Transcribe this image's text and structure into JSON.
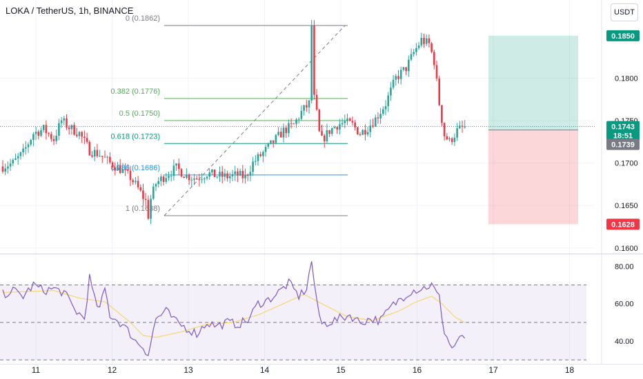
{
  "header": {
    "title": "LOKA / TetherUS, 1h, BINANCE",
    "currency_button": "USDT"
  },
  "colors": {
    "up": "#26a69a",
    "down": "#f23645",
    "rsi": "#7e57c2",
    "rsi_ma": "#f5d76e",
    "fib_green": "#4caf50",
    "fib_teal": "#089981",
    "fib_blue": "#2196f3",
    "target": "#089981",
    "stop": "#f23645",
    "current": "#089981"
  },
  "chart_data": [
    {
      "type": "candlestick",
      "name": "price",
      "x_ticks": [
        "11",
        "12",
        "13",
        "14",
        "15",
        "16",
        "17",
        "18"
      ],
      "y_ticks": [
        "0.1800",
        "0.1750",
        "0.1700",
        "0.1650",
        "0.1600"
      ],
      "ylim": [
        0.1595,
        0.1888
      ],
      "key_points": [
        [
          0,
          0.1696
        ],
        [
          4,
          0.17
        ],
        [
          8,
          0.1712
        ],
        [
          12,
          0.1735
        ],
        [
          16,
          0.174
        ],
        [
          20,
          0.1728
        ],
        [
          23,
          0.175
        ],
        [
          26,
          0.1742
        ],
        [
          30,
          0.1735
        ],
        [
          34,
          0.1715
        ],
        [
          38,
          0.171
        ],
        [
          42,
          0.17
        ],
        [
          46,
          0.1693
        ],
        [
          50,
          0.1683
        ],
        [
          53,
          0.167
        ],
        [
          56,
          0.1655
        ],
        [
          57,
          0.1638
        ],
        [
          58,
          0.1658
        ],
        [
          60,
          0.1676
        ],
        [
          64,
          0.1686
        ],
        [
          68,
          0.1694
        ],
        [
          72,
          0.1685
        ],
        [
          76,
          0.1682
        ],
        [
          80,
          0.1688
        ],
        [
          84,
          0.1685
        ],
        [
          88,
          0.1684
        ],
        [
          92,
          0.1686
        ],
        [
          95,
          0.1683
        ],
        [
          98,
          0.17
        ],
        [
          102,
          0.1712
        ],
        [
          106,
          0.1725
        ],
        [
          110,
          0.1738
        ],
        [
          114,
          0.1745
        ],
        [
          117,
          0.176
        ],
        [
          120,
          0.177
        ],
        [
          121,
          0.1862
        ],
        [
          122,
          0.1776
        ],
        [
          123,
          0.1758
        ],
        [
          124,
          0.1735
        ],
        [
          125,
          0.1727
        ],
        [
          128,
          0.1738
        ],
        [
          131,
          0.1745
        ],
        [
          134,
          0.1748
        ],
        [
          137,
          0.1745
        ],
        [
          140,
          0.1735
        ],
        [
          143,
          0.1742
        ],
        [
          146,
          0.1752
        ],
        [
          150,
          0.177
        ],
        [
          154,
          0.18
        ],
        [
          158,
          0.1812
        ],
        [
          161,
          0.183
        ],
        [
          164,
          0.1845
        ],
        [
          167,
          0.184
        ],
        [
          169,
          0.182
        ],
        [
          171,
          0.177
        ],
        [
          173,
          0.1733
        ],
        [
          175,
          0.1725
        ],
        [
          178,
          0.1738
        ],
        [
          181,
          0.1743
        ]
      ],
      "last_price": "0.1743",
      "countdown": "18:51",
      "marked_price": "0.1739",
      "fibonacci": [
        {
          "label": "0 (0.1862)",
          "value": 0.1862,
          "color": "#787b86"
        },
        {
          "label": "0.382 (0.1776)",
          "value": 0.1776,
          "color": "#4caf50"
        },
        {
          "label": "0.5 (0.1750)",
          "value": 0.175,
          "color": "#4caf50"
        },
        {
          "label": "0.618 (0.1723)",
          "value": 0.1723,
          "color": "#089981"
        },
        {
          "label": "0.786 (0.1686)",
          "value": 0.1686,
          "color": "#2196f3"
        },
        {
          "label": "1 (0.1638)",
          "value": 0.1638,
          "color": "#787b86"
        }
      ],
      "position": {
        "target": 0.185,
        "entry": 0.1739,
        "stop": 0.1628,
        "target_label": "0.1850",
        "stop_label": "0.1628"
      }
    },
    {
      "type": "line",
      "name": "RSI",
      "y_ticks": [
        "80.00",
        "60.00",
        "40.00"
      ],
      "ylim": [
        29,
        86
      ],
      "bands": [
        70,
        50,
        30
      ],
      "key_points": [
        [
          0,
          65
        ],
        [
          4,
          67
        ],
        [
          8,
          64
        ],
        [
          12,
          70
        ],
        [
          16,
          67
        ],
        [
          20,
          68
        ],
        [
          24,
          66
        ],
        [
          28,
          57
        ],
        [
          32,
          52
        ],
        [
          34,
          74
        ],
        [
          36,
          62
        ],
        [
          38,
          57
        ],
        [
          40,
          68
        ],
        [
          42,
          54
        ],
        [
          46,
          50
        ],
        [
          50,
          44
        ],
        [
          52,
          40
        ],
        [
          55,
          37
        ],
        [
          57,
          33
        ],
        [
          60,
          52
        ],
        [
          64,
          56
        ],
        [
          68,
          50
        ],
        [
          72,
          47
        ],
        [
          76,
          44
        ],
        [
          80,
          50
        ],
        [
          84,
          48
        ],
        [
          88,
          50
        ],
        [
          92,
          49
        ],
        [
          96,
          51
        ],
        [
          100,
          60
        ],
        [
          104,
          62
        ],
        [
          108,
          66
        ],
        [
          112,
          71
        ],
        [
          116,
          64
        ],
        [
          119,
          68
        ],
        [
          121,
          83
        ],
        [
          123,
          60
        ],
        [
          125,
          49
        ],
        [
          130,
          51
        ],
        [
          136,
          54
        ],
        [
          140,
          50
        ],
        [
          144,
          52
        ],
        [
          148,
          51
        ],
        [
          152,
          58
        ],
        [
          156,
          63
        ],
        [
          160,
          67
        ],
        [
          164,
          68
        ],
        [
          168,
          70
        ],
        [
          171,
          63
        ],
        [
          173,
          45
        ],
        [
          176,
          36
        ],
        [
          178,
          40
        ],
        [
          181,
          42
        ]
      ],
      "ma_key_points": [
        [
          0,
          66
        ],
        [
          20,
          67
        ],
        [
          30,
          63
        ],
        [
          40,
          61
        ],
        [
          50,
          50
        ],
        [
          55,
          43
        ],
        [
          60,
          42
        ],
        [
          70,
          45
        ],
        [
          80,
          49
        ],
        [
          90,
          50
        ],
        [
          100,
          54
        ],
        [
          110,
          60
        ],
        [
          118,
          65
        ],
        [
          125,
          60
        ],
        [
          135,
          53
        ],
        [
          145,
          51
        ],
        [
          155,
          56
        ],
        [
          162,
          61
        ],
        [
          168,
          64
        ],
        [
          172,
          60
        ],
        [
          177,
          53
        ],
        [
          181,
          50
        ]
      ]
    }
  ]
}
